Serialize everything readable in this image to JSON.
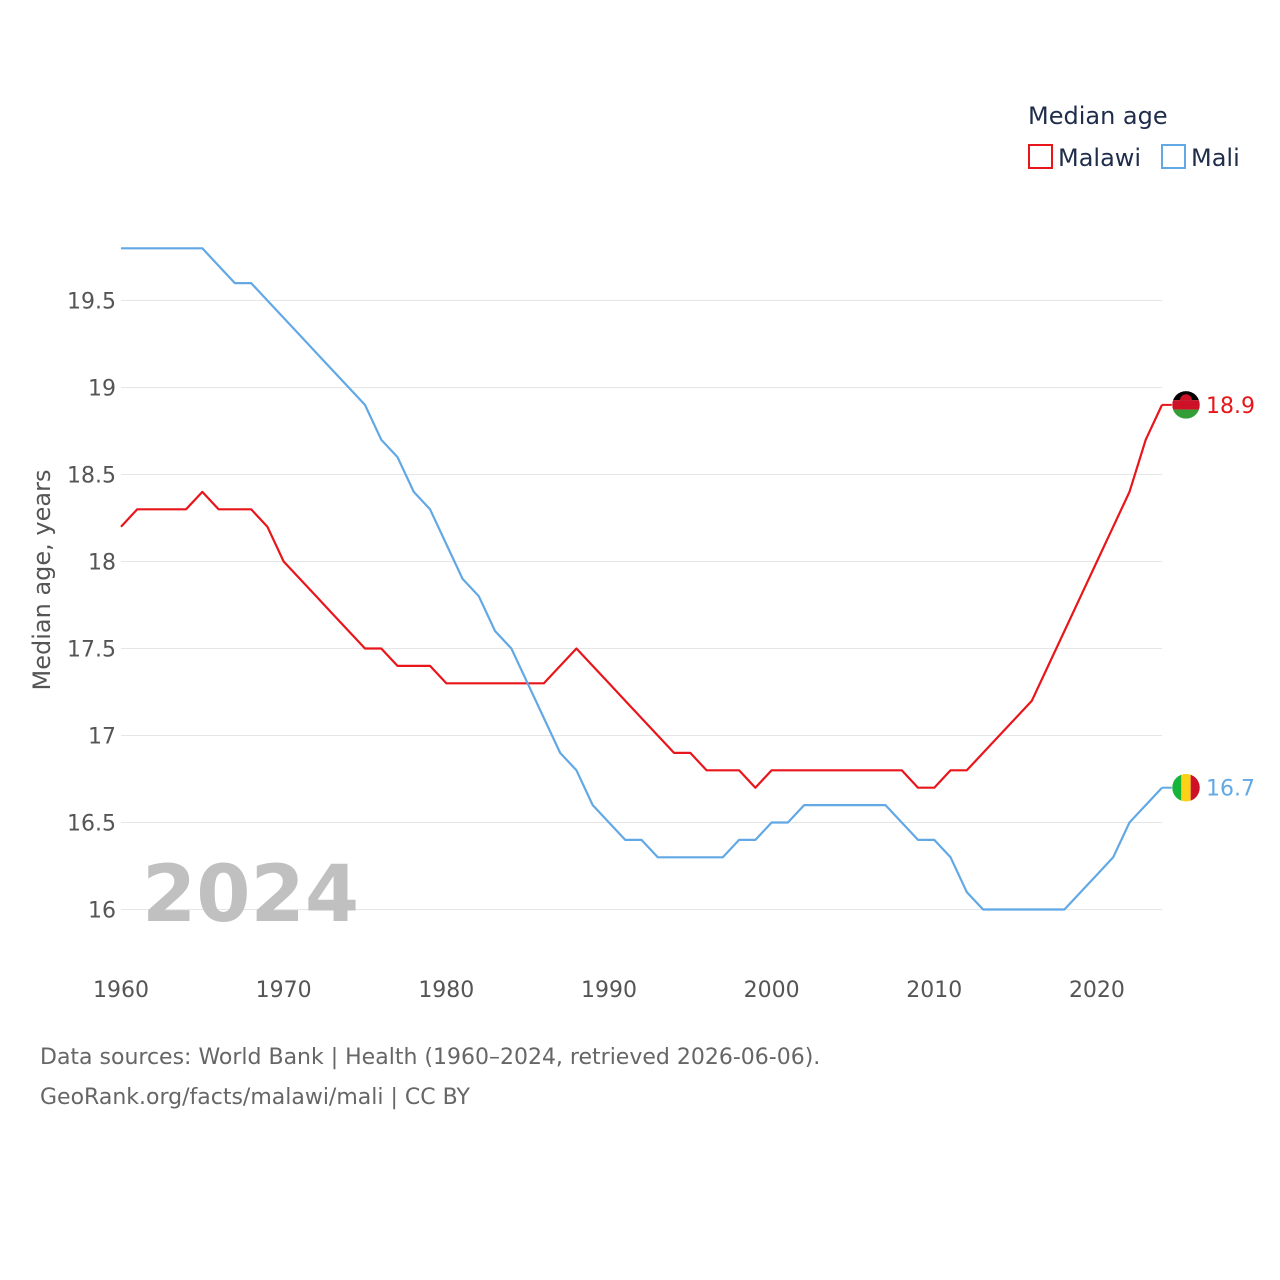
{
  "chart_data": {
    "type": "line",
    "legend_title": "Median age",
    "ylabel": "Median age, years",
    "xlabel": "",
    "x": [
      1960,
      1961,
      1962,
      1963,
      1964,
      1965,
      1966,
      1967,
      1968,
      1969,
      1970,
      1971,
      1972,
      1973,
      1974,
      1975,
      1976,
      1977,
      1978,
      1979,
      1980,
      1981,
      1982,
      1983,
      1984,
      1985,
      1986,
      1987,
      1988,
      1989,
      1990,
      1991,
      1992,
      1993,
      1994,
      1995,
      1996,
      1997,
      1998,
      1999,
      2000,
      2001,
      2002,
      2003,
      2004,
      2005,
      2006,
      2007,
      2008,
      2009,
      2010,
      2011,
      2012,
      2013,
      2014,
      2015,
      2016,
      2017,
      2018,
      2019,
      2020,
      2021,
      2022,
      2023,
      2024
    ],
    "series": [
      {
        "name": "Malawi",
        "color": "#e8161b",
        "end_label": "18.9",
        "flag": "malawi-flag",
        "values": [
          18.2,
          18.3,
          18.3,
          18.3,
          18.3,
          18.4,
          18.3,
          18.3,
          18.3,
          18.2,
          18.0,
          17.9,
          17.8,
          17.7,
          17.6,
          17.5,
          17.5,
          17.4,
          17.4,
          17.4,
          17.3,
          17.3,
          17.3,
          17.3,
          17.3,
          17.3,
          17.3,
          17.4,
          17.5,
          17.4,
          17.3,
          17.2,
          17.1,
          17.0,
          16.9,
          16.9,
          16.8,
          16.8,
          16.8,
          16.7,
          16.8,
          16.8,
          16.8,
          16.8,
          16.8,
          16.8,
          16.8,
          16.8,
          16.8,
          16.7,
          16.7,
          16.8,
          16.8,
          16.9,
          17.0,
          17.1,
          17.2,
          17.4,
          17.6,
          17.8,
          18.0,
          18.2,
          18.4,
          18.7,
          18.9
        ]
      },
      {
        "name": "Mali",
        "color": "#62a8e5",
        "end_label": "16.7",
        "flag": "mali-flag",
        "values": [
          19.8,
          19.8,
          19.8,
          19.8,
          19.8,
          19.8,
          19.7,
          19.6,
          19.6,
          19.5,
          19.4,
          19.3,
          19.2,
          19.1,
          19.0,
          18.9,
          18.7,
          18.6,
          18.4,
          18.3,
          18.1,
          17.9,
          17.8,
          17.6,
          17.5,
          17.3,
          17.1,
          16.9,
          16.8,
          16.6,
          16.5,
          16.4,
          16.4,
          16.3,
          16.3,
          16.3,
          16.3,
          16.3,
          16.4,
          16.4,
          16.5,
          16.5,
          16.6,
          16.6,
          16.6,
          16.6,
          16.6,
          16.6,
          16.5,
          16.4,
          16.4,
          16.3,
          16.1,
          16.0,
          16.0,
          16.0,
          16.0,
          16.0,
          16.0,
          16.1,
          16.2,
          16.3,
          16.5,
          16.6,
          16.7
        ]
      }
    ],
    "x_ticks": [
      "1960",
      "1970",
      "1980",
      "1990",
      "2000",
      "2010",
      "2020"
    ],
    "y_ticks": [
      "16",
      "16.5",
      "17",
      "17.5",
      "18",
      "18.5",
      "19",
      "19.5"
    ],
    "xlim": [
      1960,
      2024
    ],
    "ylim": [
      15.7,
      19.9
    ],
    "grid": true,
    "legend_position": "top-right",
    "year_label": "2024"
  },
  "source": {
    "line1": "Data sources: World Bank | Health (1960–2024, retrieved 2026-06-06).",
    "line2": "GeoRank.org/facts/malawi/mali | CC BY"
  }
}
